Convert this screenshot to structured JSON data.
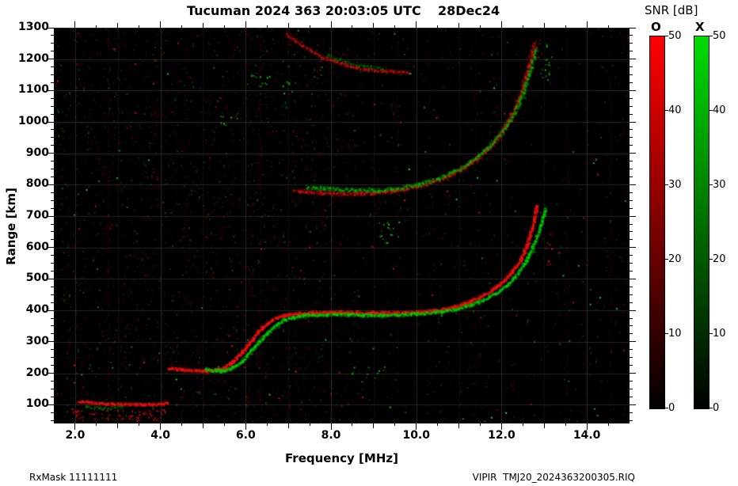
{
  "header": {
    "title": "Tucuman 2024 363 20:03:05 UTC",
    "date": "28Dec24"
  },
  "footer": {
    "rx_mask": "RxMask 11111111",
    "file": "VIPIR  TMJ20_2024363200305.RIQ"
  },
  "colorbar": {
    "title": "SNR [dB]",
    "o_label": "O",
    "x_label": "X",
    "min": 0,
    "max": 50,
    "ticks": [
      0,
      10,
      20,
      30,
      40,
      50
    ],
    "o_top_color": "#ff0000",
    "x_top_color": "#00dd00",
    "bottom_color": "#000000"
  },
  "chart_data": {
    "type": "heatmap",
    "title": "VIPIR ionogram, Tucuman, 2024 day 363, 20:03:05 UTC (28Dec24)",
    "xlabel": "Frequency [MHz]",
    "ylabel": "Range [km]",
    "xlim": [
      1.5,
      15.0
    ],
    "ylim": [
      40,
      1300
    ],
    "xticks": [
      2.0,
      4.0,
      6.0,
      8.0,
      10.0,
      12.0,
      14.0
    ],
    "xtick_labels": [
      "2.0",
      "4.0",
      "6.0",
      "8.0",
      "10.0",
      "12.0",
      "14.0"
    ],
    "yticks": [
      100,
      200,
      300,
      400,
      500,
      600,
      700,
      800,
      900,
      1000,
      1100,
      1200,
      1300
    ],
    "background": "#000000",
    "grid": true,
    "legend_position": "right",
    "series": [
      {
        "name": "O-mode low trace ~100 km",
        "color": "#e01010",
        "size": 2.6,
        "jitter": 1.2,
        "alpha": [
          0.5,
          1.0
        ],
        "points": [
          [
            2.08,
            110
          ],
          [
            2.5,
            104
          ],
          [
            3.0,
            101
          ],
          [
            3.55,
            100
          ],
          [
            4.0,
            101
          ],
          [
            4.2,
            106
          ]
        ]
      },
      {
        "name": "X-mode low scatter",
        "color": "#00b400",
        "size": 2.0,
        "jitter": 2.0,
        "alpha": [
          0.15,
          0.5
        ],
        "points": [
          [
            2.2,
            92
          ],
          [
            2.7,
            88
          ],
          [
            3.15,
            90
          ]
        ]
      },
      {
        "name": "O-mode 1F trace",
        "color": "#e81010",
        "size": 3.0,
        "jitter": 1.3,
        "alpha": [
          0.55,
          1.0
        ],
        "points": [
          [
            4.2,
            216
          ],
          [
            4.6,
            210
          ],
          [
            5.0,
            207
          ],
          [
            5.3,
            209
          ],
          [
            5.5,
            216
          ],
          [
            5.7,
            235
          ],
          [
            5.9,
            262
          ],
          [
            6.1,
            296
          ],
          [
            6.3,
            330
          ],
          [
            6.5,
            356
          ],
          [
            6.7,
            374
          ],
          [
            6.9,
            383
          ],
          [
            7.2,
            388
          ],
          [
            7.6,
            392
          ],
          [
            8.1,
            393
          ],
          [
            8.7,
            392
          ],
          [
            9.3,
            391
          ],
          [
            9.9,
            392
          ],
          [
            10.3,
            396
          ],
          [
            10.6,
            402
          ],
          [
            10.9,
            411
          ],
          [
            11.2,
            424
          ],
          [
            11.5,
            441
          ],
          [
            11.8,
            464
          ],
          [
            12.0,
            486
          ],
          [
            12.2,
            513
          ],
          [
            12.4,
            549
          ],
          [
            12.55,
            588
          ],
          [
            12.68,
            638
          ],
          [
            12.78,
            692
          ],
          [
            12.84,
            735
          ]
        ]
      },
      {
        "name": "X-mode 1F trace",
        "color": "#00cc00",
        "size": 2.8,
        "jitter": 1.3,
        "alpha": [
          0.45,
          0.95
        ],
        "points": [
          [
            5.05,
            212
          ],
          [
            5.35,
            206
          ],
          [
            5.6,
            210
          ],
          [
            5.8,
            224
          ],
          [
            6.0,
            248
          ],
          [
            6.2,
            280
          ],
          [
            6.45,
            318
          ],
          [
            6.7,
            350
          ],
          [
            6.9,
            368
          ],
          [
            7.15,
            378
          ],
          [
            7.5,
            384
          ],
          [
            8.0,
            386
          ],
          [
            8.6,
            385
          ],
          [
            9.2,
            384
          ],
          [
            9.8,
            386
          ],
          [
            10.3,
            391
          ],
          [
            10.7,
            397
          ],
          [
            11.0,
            405
          ],
          [
            11.3,
            417
          ],
          [
            11.6,
            433
          ],
          [
            11.9,
            455
          ],
          [
            12.1,
            477
          ],
          [
            12.3,
            503
          ],
          [
            12.5,
            537
          ],
          [
            12.65,
            574
          ],
          [
            12.8,
            622
          ],
          [
            12.95,
            678
          ],
          [
            13.05,
            728
          ]
        ]
      },
      {
        "name": "O-mode 2F trace",
        "color": "#d01010",
        "size": 2.8,
        "jitter": 1.8,
        "alpha": [
          0.3,
          0.8
        ],
        "points": [
          [
            7.15,
            783
          ],
          [
            7.5,
            777
          ],
          [
            8.0,
            773
          ],
          [
            8.5,
            771
          ],
          [
            9.0,
            773
          ],
          [
            9.4,
            778
          ],
          [
            9.8,
            786
          ],
          [
            10.2,
            799
          ],
          [
            10.6,
            817
          ],
          [
            11.0,
            842
          ],
          [
            11.3,
            869
          ],
          [
            11.6,
            902
          ],
          [
            11.9,
            943
          ],
          [
            12.15,
            993
          ],
          [
            12.35,
            1048
          ],
          [
            12.5,
            1102
          ],
          [
            12.62,
            1158
          ],
          [
            12.72,
            1212
          ],
          [
            12.78,
            1255
          ]
        ]
      },
      {
        "name": "X-mode 2F trace",
        "color": "#00bb00",
        "size": 2.6,
        "jitter": 1.8,
        "alpha": [
          0.25,
          0.75
        ],
        "points": [
          [
            7.45,
            792
          ],
          [
            8.0,
            786
          ],
          [
            8.6,
            782
          ],
          [
            9.2,
            783
          ],
          [
            9.6,
            789
          ],
          [
            10.0,
            799
          ],
          [
            10.4,
            813
          ],
          [
            10.8,
            833
          ],
          [
            11.1,
            856
          ],
          [
            11.4,
            884
          ],
          [
            11.7,
            919
          ],
          [
            12.0,
            962
          ],
          [
            12.25,
            1012
          ],
          [
            12.45,
            1068
          ],
          [
            12.6,
            1124
          ],
          [
            12.72,
            1180
          ],
          [
            12.82,
            1235
          ]
        ]
      },
      {
        "name": "O-mode upper trace",
        "color": "#c01010",
        "size": 2.6,
        "jitter": 1.6,
        "alpha": [
          0.3,
          0.75
        ],
        "points": [
          [
            6.98,
            1278
          ],
          [
            7.2,
            1253
          ],
          [
            7.5,
            1228
          ],
          [
            7.8,
            1207
          ],
          [
            8.1,
            1191
          ],
          [
            8.45,
            1177
          ],
          [
            8.8,
            1167
          ],
          [
            9.15,
            1161
          ],
          [
            9.5,
            1158
          ],
          [
            9.85,
            1157
          ]
        ]
      },
      {
        "name": "X-mode upper trace",
        "color": "#00a800",
        "size": 2.2,
        "jitter": 1.8,
        "alpha": [
          0.15,
          0.5
        ],
        "points": [
          [
            7.9,
            1212
          ],
          [
            8.2,
            1196
          ],
          [
            8.55,
            1184
          ],
          [
            8.9,
            1175
          ],
          [
            9.25,
            1170
          ]
        ]
      }
    ],
    "rfi_bands": [
      {
        "f": 2.78,
        "a": 0.25
      },
      {
        "f": 3.02,
        "a": 0.12
      },
      {
        "f": 4.62,
        "a": 0.1
      },
      {
        "f": 5.68,
        "a": 0.14
      },
      {
        "f": 6.07,
        "a": 0.18
      },
      {
        "f": 6.33,
        "a": 0.22
      },
      {
        "f": 7.82,
        "a": 0.1
      },
      {
        "f": 8.3,
        "a": 0.08
      },
      {
        "f": 9.55,
        "a": 0.16
      },
      {
        "f": 10.28,
        "a": 0.12
      },
      {
        "f": 11.38,
        "a": 0.14
      },
      {
        "f": 12.18,
        "a": 0.1
      },
      {
        "f": 13.52,
        "a": 0.18
      },
      {
        "f": 13.92,
        "a": 0.12
      },
      {
        "f": 14.55,
        "a": 0.2
      },
      {
        "f": 14.88,
        "a": 0.12
      }
    ],
    "clusters": [
      {
        "f": 9.35,
        "km": 650,
        "c": "g",
        "n": 18,
        "sf": 0.25,
        "skm": 35
      },
      {
        "f": 6.3,
        "km": 1140,
        "c": "g",
        "n": 12,
        "sf": 0.2,
        "skm": 30
      },
      {
        "f": 7.0,
        "km": 1105,
        "c": "g",
        "n": 8,
        "sf": 0.15,
        "skm": 25
      },
      {
        "f": 13.05,
        "km": 1190,
        "c": "g",
        "n": 14,
        "sf": 0.12,
        "skm": 60
      },
      {
        "f": 12.85,
        "km": 1240,
        "c": "r",
        "n": 10,
        "sf": 0.1,
        "skm": 40
      },
      {
        "f": 13.1,
        "km": 600,
        "c": "r",
        "n": 10,
        "sf": 0.08,
        "skm": 60
      },
      {
        "f": 3.0,
        "km": 70,
        "c": "r",
        "n": 90,
        "sf": 1.1,
        "skm": 20
      },
      {
        "f": 5.6,
        "km": 1010,
        "c": "g",
        "n": 6,
        "sf": 0.2,
        "skm": 20
      },
      {
        "f": 9.0,
        "km": 205,
        "c": "g",
        "n": 8,
        "sf": 0.3,
        "skm": 20
      }
    ],
    "noise": {
      "speckles": 4200,
      "red_fraction": 0.7
    }
  }
}
